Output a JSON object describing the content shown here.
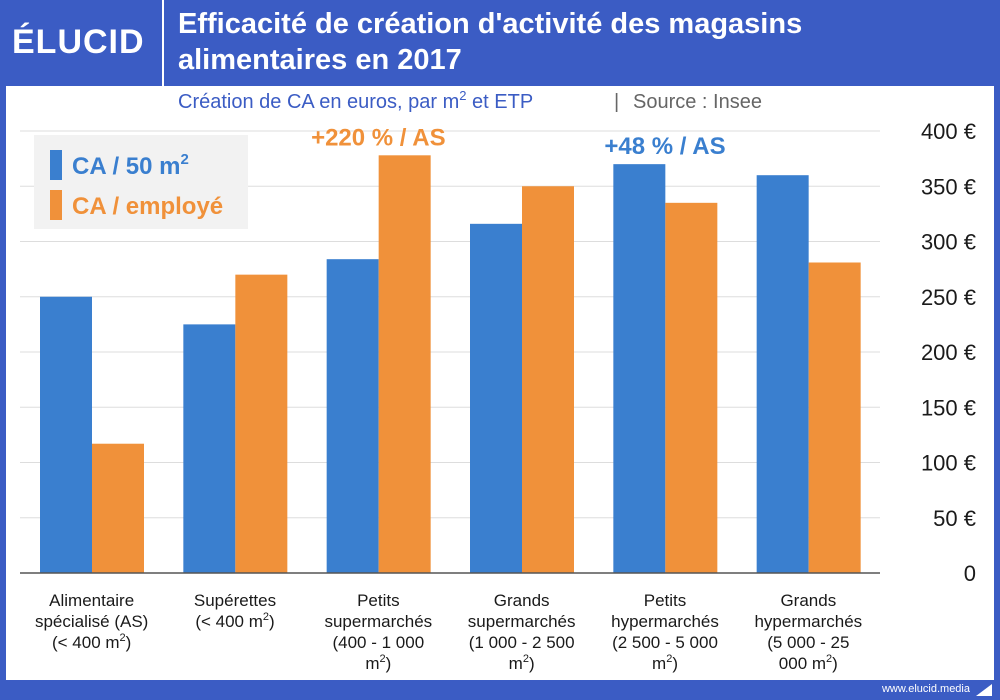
{
  "brand": {
    "logo": "ÉLUCID",
    "footer": "www.elucid.media"
  },
  "header": {
    "title_line1": "Efficacité de création d'activité des magasins",
    "title_line2": "alimentaires en 2017"
  },
  "colors": {
    "blue": "#3a7fcf",
    "orange": "#f0913a",
    "header_bg": "#3b5cc4",
    "grid": "#dddddd",
    "text": "#1a1a1a"
  },
  "chart_data": {
    "type": "bar",
    "subtitle": "Création de CA en euros, par m² et ETP",
    "source": "Source : Insee",
    "categories": [
      [
        "Alimentaire",
        "spécialisé (AS)",
        "(< 400 m²)"
      ],
      [
        "Supérettes",
        "(< 400 m²)"
      ],
      [
        "Petits",
        "supermarchés",
        "(400 - 1 000",
        "m²)"
      ],
      [
        "Grands",
        "supermarchés",
        "(1 000 - 2 500",
        "m²)"
      ],
      [
        "Petits",
        "hypermarchés",
        "(2 500 - 5 000",
        "m²)"
      ],
      [
        "Grands",
        "hypermarchés",
        "(5 000 - 25",
        "000 m²)"
      ]
    ],
    "series": [
      {
        "name": "CA / 50 m²",
        "color": "#3a7fcf",
        "values": [
          250,
          225,
          284,
          316,
          370,
          360
        ]
      },
      {
        "name": "CA / employé",
        "color": "#f0913a",
        "values": [
          117,
          270,
          378,
          350,
          335,
          281
        ]
      }
    ],
    "y_ticks": [
      "0",
      "50 €",
      "100 €",
      "150 €",
      "200 €",
      "250 €",
      "300 €",
      "350 €",
      "400 €"
    ],
    "ylim": [
      0,
      400
    ],
    "grid": true,
    "legend": "top-left",
    "annotations": [
      {
        "text": "+220 % / AS",
        "category": 2,
        "color": "#f0913a"
      },
      {
        "text": "+48 % / AS",
        "category": 4,
        "color": "#3a7fcf"
      }
    ]
  }
}
